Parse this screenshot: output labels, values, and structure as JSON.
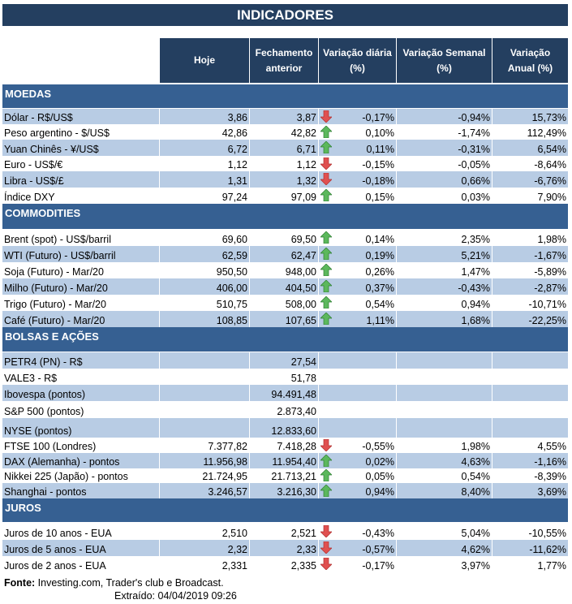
{
  "title": "INDICADORES",
  "columns": [
    "Hoje",
    "Fechamento anterior",
    "Variação diária (%)",
    "Variação Semanal (%)",
    "Variação Anual (%)"
  ],
  "colors": {
    "header": "#243f60",
    "section": "#366092",
    "band": "#b8cce4",
    "up": "#5cb85c",
    "down": "#e05050"
  },
  "sections": [
    {
      "name": "MOEDAS",
      "rows": [
        {
          "label": "Dólar - R$/US$",
          "hoje": "3,86",
          "anterior": "3,87",
          "trend": "down",
          "diaria": "-0,17%",
          "semanal": "-0,94%",
          "anual": "15,73%"
        },
        {
          "label": "Peso argentino - $/US$",
          "hoje": "42,86",
          "anterior": "42,82",
          "trend": "up",
          "diaria": "0,10%",
          "semanal": "-1,74%",
          "anual": "112,49%"
        },
        {
          "label": "Yuan Chinês - ¥/US$",
          "hoje": "6,72",
          "anterior": "6,71",
          "trend": "up",
          "diaria": "0,11%",
          "semanal": "-0,31%",
          "anual": "6,54%"
        },
        {
          "label": "Euro - US$/€",
          "hoje": "1,12",
          "anterior": "1,12",
          "trend": "down",
          "diaria": "-0,15%",
          "semanal": "-0,05%",
          "anual": "-8,64%"
        },
        {
          "label": "Libra - US$/£",
          "hoje": "1,31",
          "anterior": "1,32",
          "trend": "down",
          "diaria": "-0,18%",
          "semanal": "0,66%",
          "anual": "-6,76%"
        },
        {
          "label": "Índice DXY",
          "hoje": "97,24",
          "anterior": "97,09",
          "trend": "up",
          "diaria": "0,15%",
          "semanal": "0,03%",
          "anual": "7,90%"
        }
      ]
    },
    {
      "name": "COMMODITIES",
      "rows": [
        {
          "label": "Brent (spot) - US$/barril",
          "hoje": "69,60",
          "anterior": "69,50",
          "trend": "up",
          "diaria": "0,14%",
          "semanal": "2,35%",
          "anual": "1,98%"
        },
        {
          "label": "WTI (Futuro) - US$/barril",
          "hoje": "62,59",
          "anterior": "62,47",
          "trend": "up",
          "diaria": "0,19%",
          "semanal": "5,21%",
          "anual": "-1,67%"
        },
        {
          "label": "Soja (Futuro) - Mar/20",
          "hoje": "950,50",
          "anterior": "948,00",
          "trend": "up",
          "diaria": "0,26%",
          "semanal": "1,47%",
          "anual": "-5,89%"
        },
        {
          "label": "Milho (Futuro) - Mar/20",
          "hoje": "406,00",
          "anterior": "404,50",
          "trend": "up",
          "diaria": "0,37%",
          "semanal": "-0,43%",
          "anual": "-2,87%"
        },
        {
          "label": "Trigo (Futuro) - Mar/20",
          "hoje": "510,75",
          "anterior": "508,00",
          "trend": "up",
          "diaria": "0,54%",
          "semanal": "0,94%",
          "anual": "-10,71%"
        },
        {
          "label": "Café (Futuro) - Mar/20",
          "hoje": "108,85",
          "anterior": "107,65",
          "trend": "up",
          "diaria": "1,11%",
          "semanal": "1,68%",
          "anual": "-22,25%"
        }
      ]
    },
    {
      "name": "BOLSAS E AÇÕES",
      "rows": [
        {
          "label": "PETR4 (PN) - R$",
          "hoje": "",
          "anterior": "27,54",
          "trend": "",
          "diaria": "",
          "semanal": "",
          "anual": ""
        },
        {
          "label": "VALE3 - R$",
          "hoje": "",
          "anterior": "51,78",
          "trend": "",
          "diaria": "",
          "semanal": "",
          "anual": ""
        },
        {
          "label": "Ibovespa (pontos)",
          "hoje": "",
          "anterior": "94.491,48",
          "trend": "",
          "diaria": "",
          "semanal": "",
          "anual": ""
        },
        {
          "label": "S&P 500 (pontos)",
          "hoje": "",
          "anterior": "2.873,40",
          "trend": "",
          "diaria": "",
          "semanal": "",
          "anual": ""
        },
        {
          "label": "NYSE (pontos)",
          "hoje": "",
          "anterior": "12.833,60",
          "trend": "",
          "diaria": "",
          "semanal": "",
          "anual": ""
        },
        {
          "label": "FTSE 100 (Londres)",
          "hoje": "7.377,82",
          "anterior": "7.418,28",
          "trend": "down",
          "diaria": "-0,55%",
          "semanal": "1,98%",
          "anual": "4,55%"
        },
        {
          "label": "DAX (Alemanha) - pontos",
          "hoje": "11.956,98",
          "anterior": "11.954,40",
          "trend": "up",
          "diaria": "0,02%",
          "semanal": "4,63%",
          "anual": "-1,16%"
        },
        {
          "label": "Nikkei 225 (Japão) - pontos",
          "hoje": "21.724,95",
          "anterior": "21.713,21",
          "trend": "up",
          "diaria": "0,05%",
          "semanal": "0,54%",
          "anual": "-8,39%"
        },
        {
          "label": "Shanghai - pontos",
          "hoje": "3.246,57",
          "anterior": "3.216,30",
          "trend": "up",
          "diaria": "0,94%",
          "semanal": "8,40%",
          "anual": "3,69%"
        }
      ]
    },
    {
      "name": "JUROS",
      "rows": [
        {
          "label": "Juros de 10 anos - EUA",
          "hoje": "2,510",
          "anterior": "2,521",
          "trend": "down",
          "diaria": "-0,43%",
          "semanal": "5,04%",
          "anual": "-10,55%"
        },
        {
          "label": "Juros de 5 anos - EUA",
          "hoje": "2,32",
          "anterior": "2,33",
          "trend": "down",
          "diaria": "-0,57%",
          "semanal": "4,62%",
          "anual": "-11,62%"
        },
        {
          "label": "Juros de 2 anos - EUA",
          "hoje": "2,331",
          "anterior": "2,335",
          "trend": "down",
          "diaria": "-0,17%",
          "semanal": "3,97%",
          "anual": "1,77%"
        }
      ]
    }
  ],
  "footer": {
    "fonte_label": "Fonte:",
    "fonte": " Investing.com, Trader's club e Broadcast.",
    "extraido": "Extraído:  04/04/2019 09:26"
  }
}
